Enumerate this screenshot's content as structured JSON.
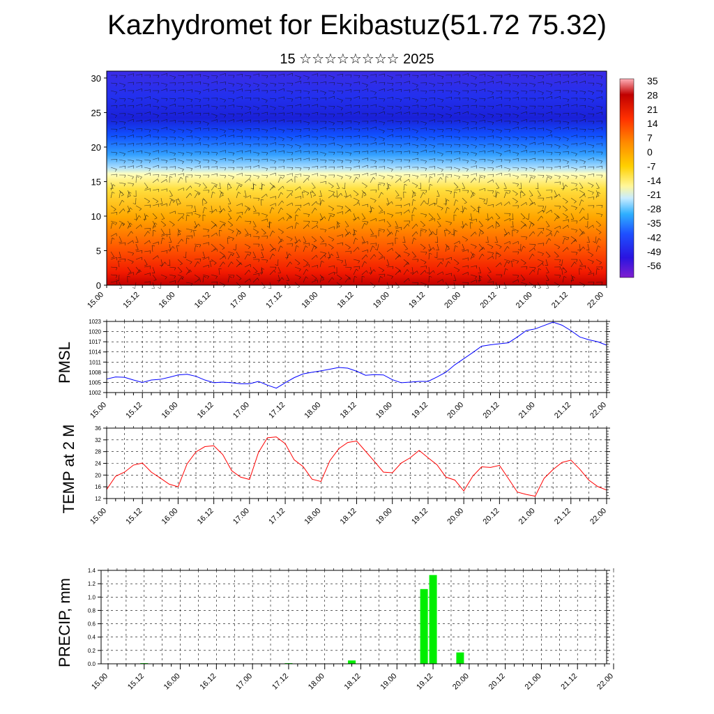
{
  "header": {
    "title": "Kazhydromet for Ekibastuz(51.72 75.32)",
    "subtitle": "15 ☆☆☆☆☆☆☆☆ 2025"
  },
  "colors": {
    "pmsl_line": "#0000ff",
    "temp_line": "#ff0000",
    "precip_bar": "#00ee00",
    "cross_color_scale": [
      "#7f1fd0",
      "#2a14e0",
      "#1f3cff",
      "#1e78ff",
      "#2fb0ff",
      "#a8e4ff",
      "#fff79a",
      "#ffe000",
      "#ffb000",
      "#ff7a00",
      "#ff3d00",
      "#e00000",
      "#b00000",
      "#ff9aa0"
    ]
  },
  "chart_data": [
    {
      "type": "heatmap",
      "title": "",
      "xlabel": "",
      "ylabel": "",
      "x_tick_labels": [
        "15.00",
        "15.12",
        "16.00",
        "16.12",
        "17.00",
        "17.12",
        "18.00",
        "18.12",
        "19.00",
        "19.12",
        "20.00",
        "20.12",
        "21.00",
        "21.12",
        "22.00"
      ],
      "y_ticks": [
        0,
        5,
        10,
        15,
        20,
        25,
        30
      ],
      "ylim": [
        0,
        31
      ],
      "colorbar_labels": [
        "35",
        "28",
        "21",
        "14",
        "7",
        "0",
        "-7",
        "-14",
        "-21",
        "-28",
        "-35",
        "-42",
        "-49",
        "-56"
      ],
      "overlay": "wind barbs",
      "levels_km": [
        0,
        5,
        10,
        15,
        20,
        25,
        30
      ],
      "approx_temperature_by_level": [
        21,
        14,
        0,
        -14,
        -42,
        -56,
        -49
      ]
    },
    {
      "type": "line",
      "ylabel": "PMSL",
      "ylim": [
        1002,
        1023
      ],
      "y_ticks": [
        1002,
        1005,
        1008,
        1011,
        1014,
        1017,
        1020,
        1023
      ],
      "x_tick_labels": [
        "15.00",
        "15.12",
        "16.00",
        "16.12",
        "17.00",
        "17.12",
        "18.00",
        "18.12",
        "19.00",
        "19.12",
        "20.00",
        "20.12",
        "21.00",
        "21.12",
        "22.00"
      ],
      "x_hours": [
        0,
        3,
        6,
        9,
        12,
        15,
        18,
        21,
        24,
        27,
        30,
        33,
        36,
        39,
        42,
        45,
        48,
        51,
        54,
        57,
        60,
        63,
        66,
        69,
        72,
        75,
        78,
        81,
        84,
        87,
        90,
        93,
        96,
        99,
        102,
        105,
        108,
        111,
        114,
        117,
        120,
        123,
        126,
        129,
        132,
        135,
        138,
        141,
        144,
        147,
        150,
        153,
        156,
        159,
        162,
        165,
        168
      ],
      "series": [
        {
          "values": [
            1006.0,
            1006.6,
            1006.5,
            1005.7,
            1005.0,
            1005.7,
            1005.9,
            1006.5,
            1007.2,
            1007.4,
            1006.8,
            1005.7,
            1004.9,
            1005.1,
            1004.9,
            1004.6,
            1004.6,
            1005.3,
            1004.2,
            1003.3,
            1004.9,
            1006.4,
            1007.5,
            1008.0,
            1008.4,
            1008.9,
            1009.4,
            1009.2,
            1008.3,
            1007.1,
            1007.3,
            1007.2,
            1005.8,
            1004.9,
            1005.1,
            1005.3,
            1005.3,
            1006.6,
            1008.0,
            1010.2,
            1012.0,
            1013.8,
            1015.7,
            1016.1,
            1016.4,
            1016.7,
            1018.4,
            1020.3,
            1020.8,
            1021.8,
            1022.8,
            1021.9,
            1020.3,
            1018.4,
            1017.6,
            1017.0,
            1016.0
          ]
        }
      ]
    },
    {
      "type": "line",
      "ylabel": "TEMP at 2 M",
      "ylim": [
        12,
        36
      ],
      "y_ticks": [
        12,
        16,
        20,
        24,
        28,
        32,
        36
      ],
      "x_tick_labels": [
        "15.00",
        "15.12",
        "16.00",
        "16.12",
        "17.00",
        "17.12",
        "18.00",
        "18.12",
        "19.00",
        "19.12",
        "20.00",
        "20.12",
        "21.00",
        "21.12",
        "22.00"
      ],
      "x_hours": [
        0,
        3,
        6,
        9,
        12,
        15,
        18,
        21,
        24,
        27,
        30,
        33,
        36,
        39,
        42,
        45,
        48,
        51,
        54,
        57,
        60,
        63,
        66,
        69,
        72,
        75,
        78,
        81,
        84,
        87,
        90,
        93,
        96,
        99,
        102,
        105,
        108,
        111,
        114,
        117,
        120,
        123,
        126,
        129,
        132,
        135,
        138,
        141,
        144,
        147,
        150,
        153,
        156,
        159,
        162,
        165,
        168
      ],
      "series": [
        {
          "values": [
            15.1,
            19.6,
            21.0,
            23.4,
            24.1,
            21.0,
            19.0,
            16.9,
            16.0,
            23.8,
            27.9,
            29.7,
            30.0,
            27.0,
            21.5,
            19.3,
            18.5,
            27.7,
            32.7,
            33.0,
            30.7,
            25.2,
            22.9,
            18.6,
            17.8,
            24.9,
            29.0,
            31.1,
            31.6,
            28.1,
            24.6,
            21.0,
            20.8,
            24.1,
            25.9,
            28.4,
            25.9,
            23.5,
            19.3,
            18.3,
            14.6,
            19.6,
            22.8,
            22.6,
            23.3,
            18.8,
            14.2,
            13.4,
            12.8,
            18.9,
            21.9,
            24.3,
            25.1,
            22.0,
            18.3,
            16.1,
            14.9
          ]
        }
      ]
    },
    {
      "type": "bar",
      "ylabel": "PRECIP, mm",
      "ylim": [
        0.0,
        1.4
      ],
      "y_ticks": [
        "0.0",
        "0.2",
        "0.4",
        "0.6",
        "0.8",
        "1.0",
        "1.2",
        "1.4"
      ],
      "x_tick_labels": [
        "15.00",
        "15.12",
        "16.00",
        "16.12",
        "17.00",
        "17.12",
        "18.00",
        "18.12",
        "19.00",
        "19.12",
        "20.00",
        "20.12",
        "21.00",
        "21.12",
        "22.00"
      ],
      "bars": [
        {
          "hour": 12,
          "value": 0.01
        },
        {
          "hour": 60,
          "value": 0.01
        },
        {
          "hour": 81,
          "value": 0.05
        },
        {
          "hour": 105,
          "value": 1.12
        },
        {
          "hour": 108,
          "value": 1.33
        },
        {
          "hour": 117,
          "value": 0.17
        }
      ]
    }
  ]
}
